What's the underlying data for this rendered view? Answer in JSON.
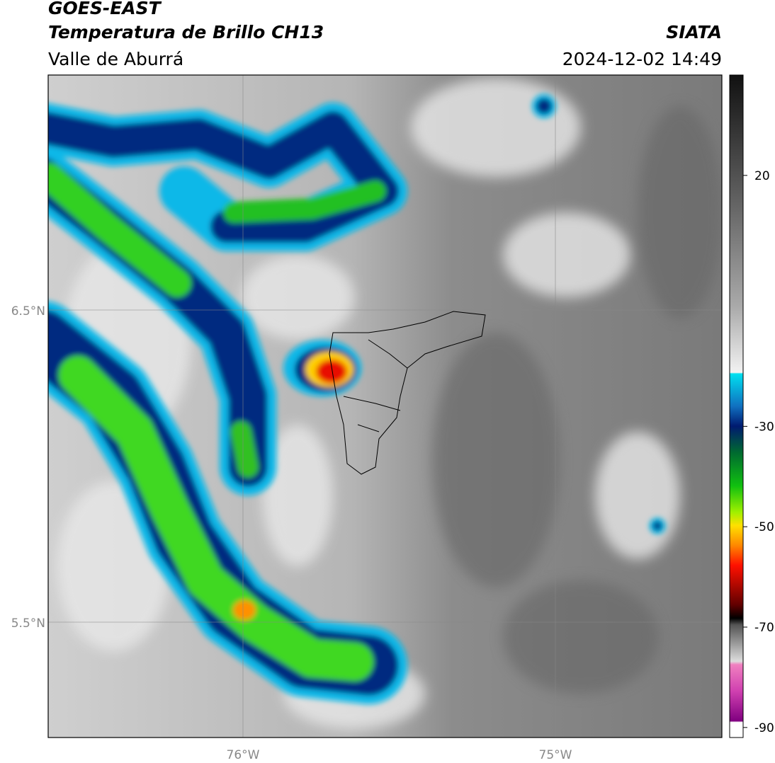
{
  "header": {
    "title": "GOES-EAST",
    "subtitle": "Temperatura de Brillo CH13",
    "region": "Valle de Aburrá",
    "source": "SIATA",
    "datetime": "2024-12-02 14:49"
  },
  "map": {
    "lat_ticks": [
      "6.5°N",
      "5.5°N"
    ],
    "lon_ticks": [
      "76°W",
      "75°W"
    ]
  },
  "colorbar": {
    "lim": [
      -92,
      40
    ],
    "ticks": [
      20,
      -30,
      -50,
      -70,
      -90
    ]
  }
}
